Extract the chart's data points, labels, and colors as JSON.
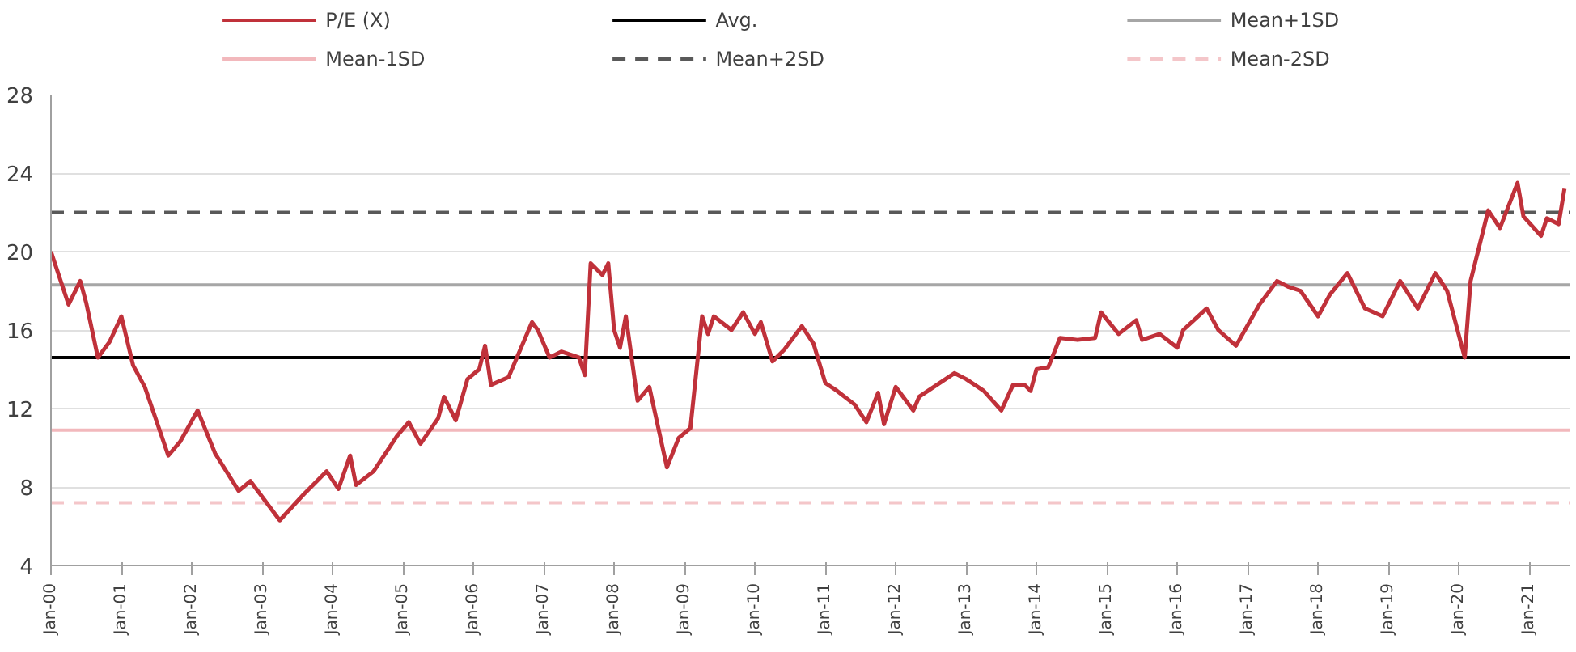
{
  "chart_data": {
    "type": "line",
    "x": [
      "2000-01",
      "2000-04",
      "2000-06",
      "2000-07",
      "2000-09",
      "2000-11",
      "2001-01",
      "2001-03",
      "2001-05",
      "2001-09",
      "2001-11",
      "2002-02",
      "2002-05",
      "2002-09",
      "2002-11",
      "2003-04",
      "2003-08",
      "2003-12",
      "2004-02",
      "2004-04",
      "2004-05",
      "2004-08",
      "2004-12",
      "2005-02",
      "2005-04",
      "2005-07",
      "2005-08",
      "2005-10",
      "2005-12",
      "2006-02",
      "2006-03",
      "2006-04",
      "2006-07",
      "2006-11",
      "2006-12",
      "2007-02",
      "2007-04",
      "2007-07",
      "2007-08",
      "2007-09",
      "2007-11",
      "2007-12",
      "2008-01",
      "2008-02",
      "2008-03",
      "2008-05",
      "2008-07",
      "2008-10",
      "2008-12",
      "2009-02",
      "2009-04",
      "2009-05",
      "2009-06",
      "2009-09",
      "2009-11",
      "2010-01",
      "2010-02",
      "2010-04",
      "2010-06",
      "2010-09",
      "2010-11",
      "2011-01",
      "2011-03",
      "2011-06",
      "2011-08",
      "2011-10",
      "2011-11",
      "2012-01",
      "2012-04",
      "2012-05",
      "2012-08",
      "2012-11",
      "2013-01",
      "2013-04",
      "2013-07",
      "2013-09",
      "2013-11",
      "2013-12",
      "2014-01",
      "2014-03",
      "2014-05",
      "2014-08",
      "2014-11",
      "2014-12",
      "2015-03",
      "2015-06",
      "2015-07",
      "2015-10",
      "2016-01",
      "2016-02",
      "2016-06",
      "2016-08",
      "2016-11",
      "2017-03",
      "2017-06",
      "2017-08",
      "2017-10",
      "2018-01",
      "2018-03",
      "2018-06",
      "2018-09",
      "2018-12",
      "2019-03",
      "2019-06",
      "2019-09",
      "2019-11",
      "2020-02",
      "2020-03",
      "2020-06",
      "2020-08",
      "2020-11",
      "2020-12",
      "2021-03",
      "2021-04",
      "2021-06",
      "2021-07"
    ],
    "series": [
      {
        "name": "P/E (X)",
        "color": "#c0313a",
        "line_style": "solid",
        "values": [
          20.0,
          17.3,
          18.5,
          17.4,
          14.6,
          15.4,
          16.7,
          14.2,
          13.1,
          9.6,
          10.3,
          11.9,
          9.7,
          7.8,
          8.3,
          6.3,
          7.6,
          8.8,
          7.9,
          9.6,
          8.1,
          8.8,
          10.6,
          11.3,
          10.2,
          11.5,
          12.6,
          11.4,
          13.5,
          14.0,
          15.2,
          13.2,
          13.6,
          16.4,
          16.0,
          14.6,
          14.9,
          14.6,
          13.7,
          19.4,
          18.8,
          19.4,
          16.0,
          15.1,
          16.7,
          12.4,
          13.1,
          9.0,
          10.5,
          11.0,
          16.7,
          15.8,
          16.7,
          16.0,
          16.9,
          15.8,
          16.4,
          14.4,
          15.0,
          16.2,
          15.3,
          13.3,
          12.9,
          12.2,
          11.3,
          12.8,
          11.2,
          13.1,
          11.9,
          12.6,
          13.2,
          13.8,
          13.5,
          12.9,
          11.9,
          13.2,
          13.2,
          12.9,
          14.0,
          14.1,
          15.6,
          15.5,
          15.6,
          16.9,
          15.8,
          16.5,
          15.5,
          15.8,
          15.1,
          16.0,
          17.1,
          16.0,
          15.2,
          17.3,
          18.5,
          18.2,
          18.0,
          16.7,
          17.8,
          18.9,
          17.1,
          16.7,
          18.5,
          17.1,
          18.9,
          18.0,
          14.6,
          18.5,
          22.1,
          21.2,
          23.5,
          21.8,
          20.8,
          21.7,
          21.4,
          23.2
        ]
      },
      {
        "name": "Avg.",
        "color": "#000000",
        "line_style": "solid",
        "x": [
          "2000-01",
          "2021-08"
        ],
        "values": [
          14.6,
          14.6
        ]
      },
      {
        "name": "Mean+1SD",
        "color": "#a6a6a6",
        "line_style": "solid",
        "x": [
          "2000-01",
          "2021-08"
        ],
        "values": [
          18.3,
          18.3
        ]
      },
      {
        "name": "Mean-1SD",
        "color": "#f2b8bc",
        "line_style": "solid",
        "x": [
          "2000-01",
          "2021-08"
        ],
        "values": [
          10.9,
          10.9
        ]
      },
      {
        "name": "Mean+2SD",
        "color": "#595959",
        "line_style": "dashed",
        "x": [
          "2000-01",
          "2021-08"
        ],
        "values": [
          22.0,
          22.0
        ]
      },
      {
        "name": "Mean-2SD",
        "color": "#f4c6c9",
        "line_style": "dashed",
        "x": [
          "2000-01",
          "2021-08"
        ],
        "values": [
          7.2,
          7.2
        ]
      }
    ],
    "xlim": [
      "2000-01",
      "2021-08"
    ],
    "xticks": [
      {
        "value": "2000-01",
        "label": "Jan-00"
      },
      {
        "value": "2001-01",
        "label": "Jan-01"
      },
      {
        "value": "2002-01",
        "label": "Jan-02"
      },
      {
        "value": "2003-01",
        "label": "Jan-03"
      },
      {
        "value": "2004-01",
        "label": "Jan-04"
      },
      {
        "value": "2005-01",
        "label": "Jan-05"
      },
      {
        "value": "2006-01",
        "label": "Jan-06"
      },
      {
        "value": "2007-01",
        "label": "Jan-07"
      },
      {
        "value": "2008-01",
        "label": "Jan-08"
      },
      {
        "value": "2009-01",
        "label": "Jan-09"
      },
      {
        "value": "2010-01",
        "label": "Jan-10"
      },
      {
        "value": "2011-01",
        "label": "Jan-11"
      },
      {
        "value": "2012-01",
        "label": "Jan-12"
      },
      {
        "value": "2013-01",
        "label": "Jan-13"
      },
      {
        "value": "2014-01",
        "label": "Jan-14"
      },
      {
        "value": "2015-01",
        "label": "Jan-15"
      },
      {
        "value": "2016-01",
        "label": "Jan-16"
      },
      {
        "value": "2017-01",
        "label": "Jan-17"
      },
      {
        "value": "2018-01",
        "label": "Jan-18"
      },
      {
        "value": "2019-01",
        "label": "Jan-19"
      },
      {
        "value": "2020-01",
        "label": "Jan-20"
      },
      {
        "value": "2021-01",
        "label": "Jan-21"
      }
    ],
    "ylim": [
      4,
      28
    ],
    "yticks": [
      4,
      8,
      12,
      16,
      20,
      24,
      28
    ],
    "grid": "y",
    "legend": "top",
    "marker": "none"
  }
}
